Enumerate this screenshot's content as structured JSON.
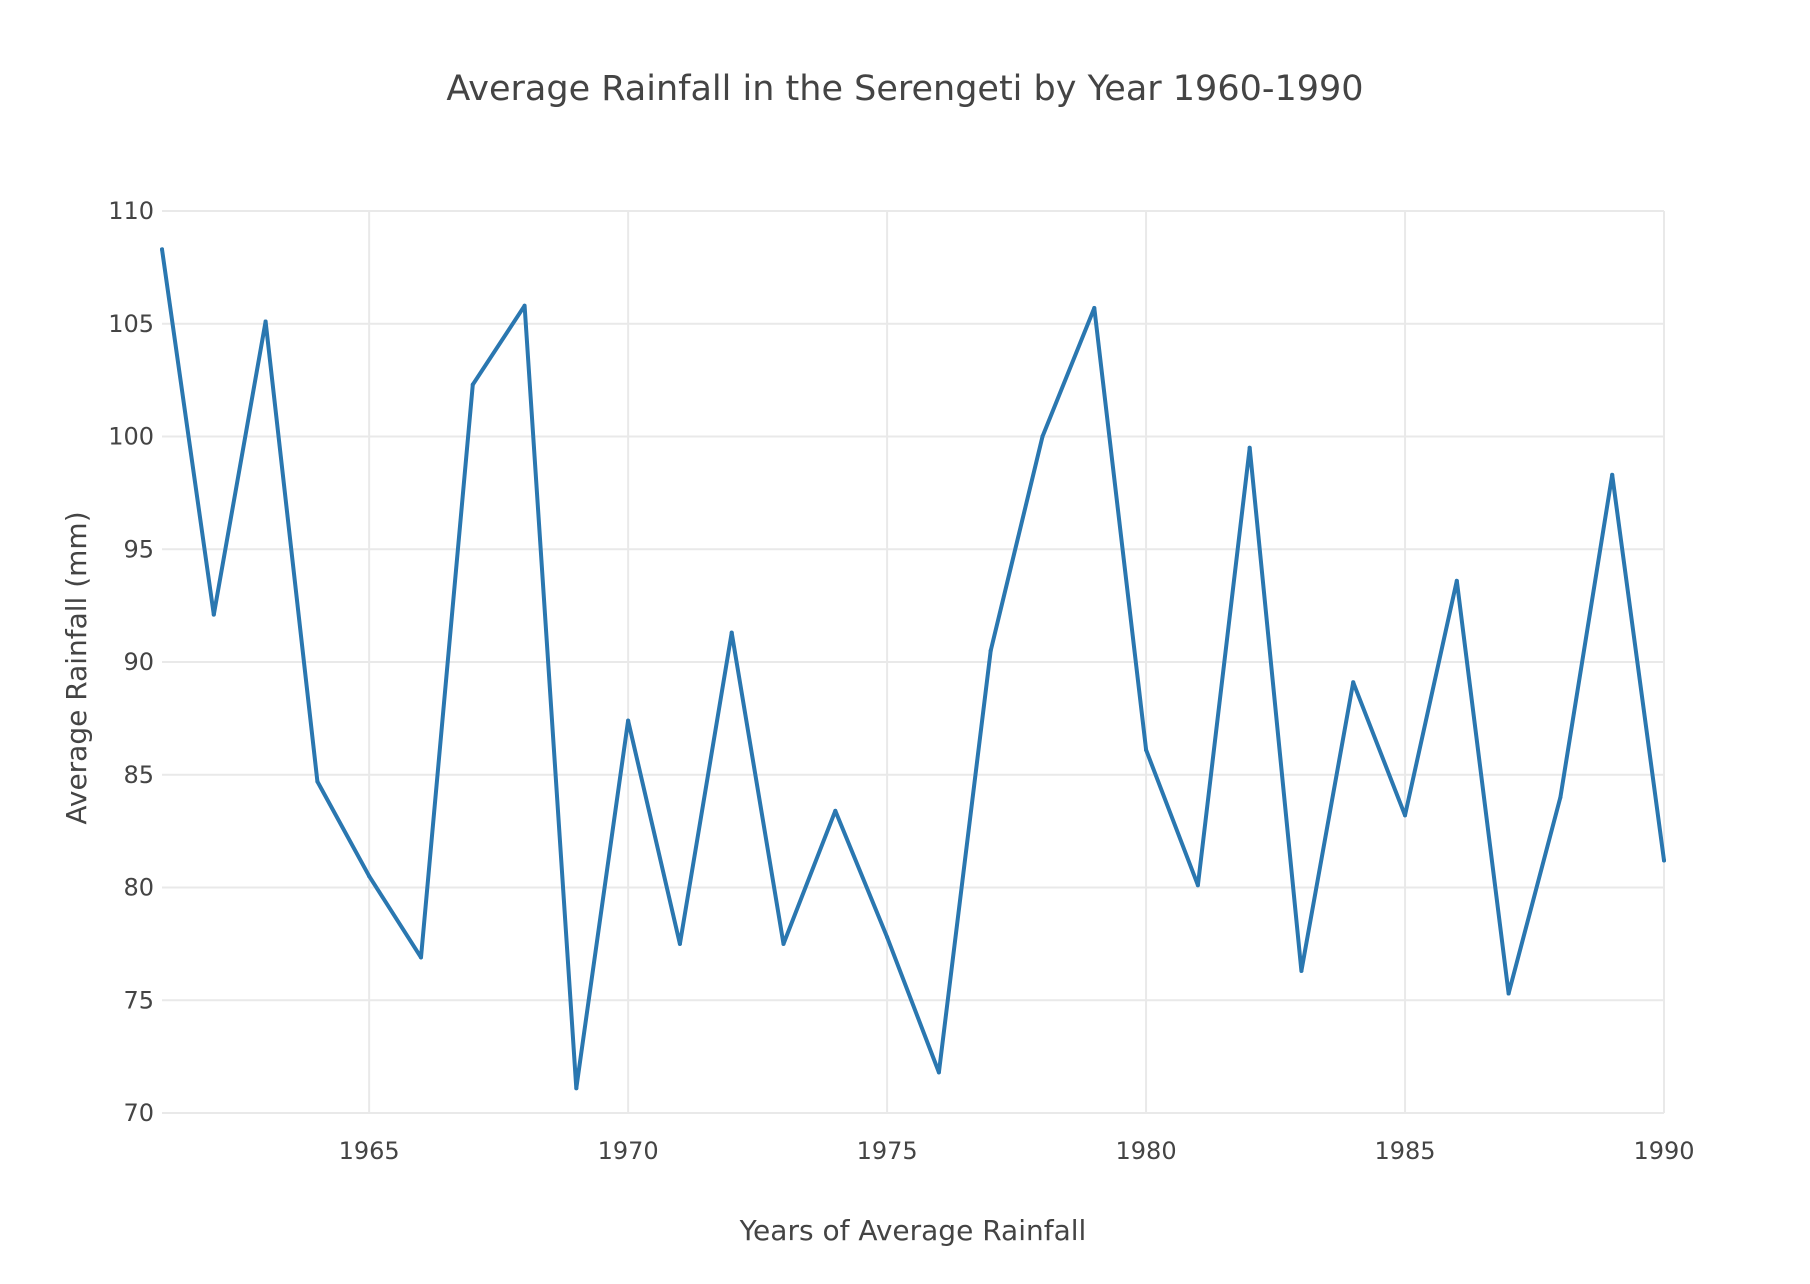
{
  "chart_data": {
    "type": "line",
    "title": "Average Rainfall in the Serengeti by Year 1960-1990",
    "xlabel": "Years of Average Rainfall",
    "ylabel": "Average Rainfall (mm)",
    "xlim": [
      1961,
      1990
    ],
    "ylim": [
      70,
      110
    ],
    "xticks": [
      1965,
      1970,
      1975,
      1980,
      1985,
      1990
    ],
    "yticks": [
      70,
      75,
      80,
      85,
      90,
      95,
      100,
      105,
      110
    ],
    "grid": true,
    "legend": "none",
    "colors": {
      "line": "#2a77b0",
      "grid": "#e9e9e9",
      "text": "#444444"
    },
    "x": [
      1961,
      1962,
      1963,
      1964,
      1965,
      1966,
      1967,
      1968,
      1969,
      1970,
      1971,
      1972,
      1973,
      1974,
      1975,
      1976,
      1977,
      1978,
      1979,
      1980,
      1981,
      1982,
      1983,
      1984,
      1985,
      1986,
      1987,
      1988,
      1989,
      1990
    ],
    "series": [
      {
        "values": [
          108.3,
          92.1,
          105.1,
          84.7,
          80.5,
          76.9,
          102.3,
          105.8,
          71.1,
          87.4,
          77.5,
          91.3,
          77.5,
          83.4,
          77.8,
          71.8,
          90.5,
          100.0,
          105.7,
          86.1,
          80.1,
          99.5,
          76.3,
          89.1,
          83.2,
          93.6,
          75.3,
          84.0,
          98.3,
          81.2
        ]
      }
    ]
  }
}
